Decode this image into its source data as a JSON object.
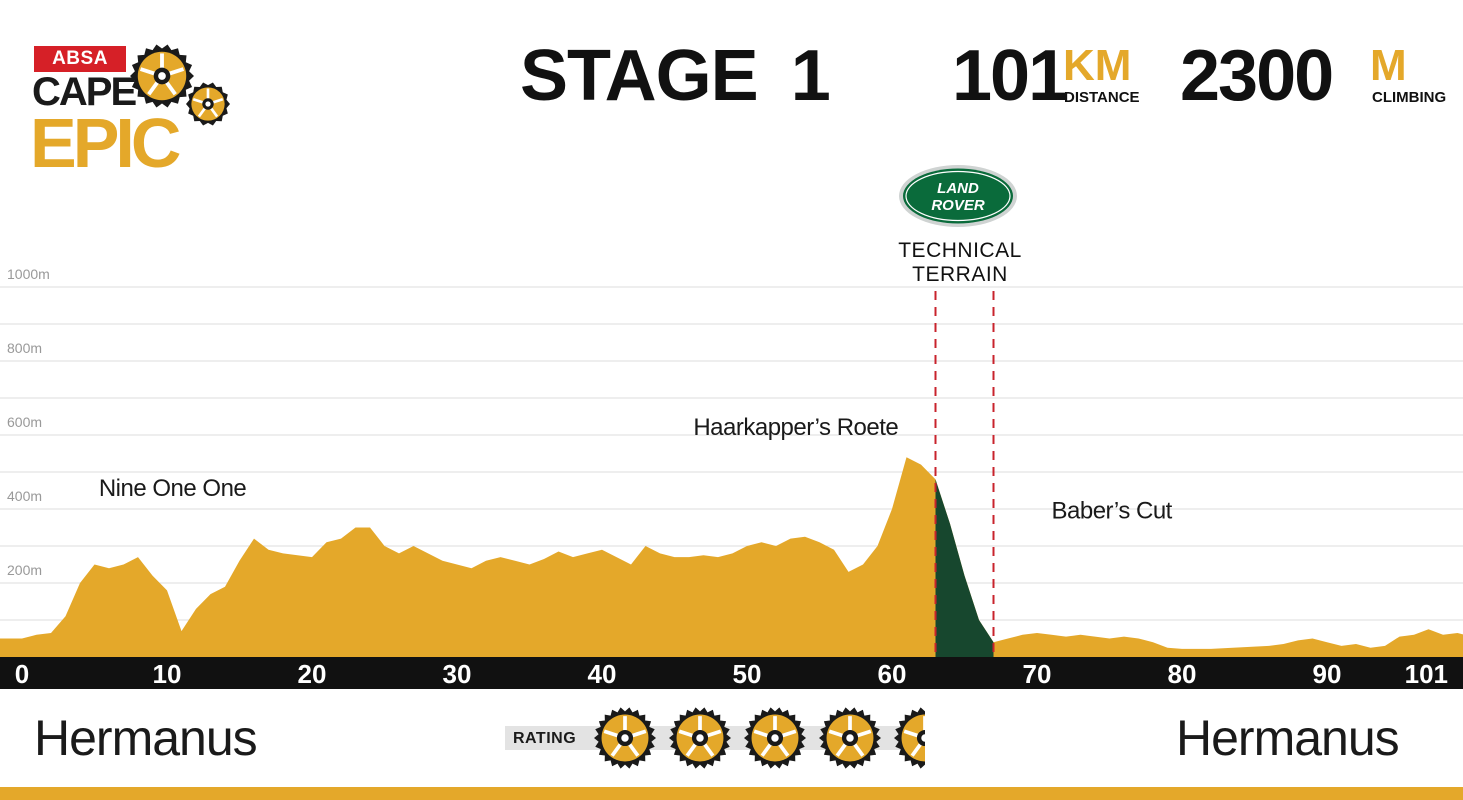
{
  "logo": {
    "absa": "ABSA",
    "cape": "CAPE",
    "epic": "EPIC"
  },
  "header": {
    "stage_word": "STAGE",
    "stage_number": "1",
    "distance_value": "101",
    "distance_unit": "KM",
    "distance_caption": "DISTANCE",
    "climbing_value": "2300",
    "climbing_unit": "M",
    "climbing_caption": "CLIMBING"
  },
  "sponsor": {
    "line1": "LAND",
    "line2": "ROVER",
    "technical_line1": "TECHNICAL",
    "technical_line2": "TERRAIN"
  },
  "footer": {
    "start_town": "Hermanus",
    "finish_town": "Hermanus",
    "rating_label": "RATING"
  },
  "rating": {
    "value": 4.5,
    "max": 5
  },
  "colors": {
    "profile_fill": "#e4a82a",
    "technical_fill": "#17472e",
    "technical_line": "#c8232c",
    "axis_band": "#111111",
    "land_rover_green": "#0a6b3b",
    "grid": "#dddddd"
  },
  "chart_data": {
    "type": "area",
    "title": "",
    "xlabel": "",
    "ylabel": "",
    "x_ticks": [
      "0",
      "10",
      "20",
      "30",
      "40",
      "50",
      "60",
      "70",
      "80",
      "90",
      "101"
    ],
    "y_ticks": [
      "200m",
      "400m",
      "600m",
      "800m",
      "1000m"
    ],
    "xlim": [
      0,
      101
    ],
    "ylim": [
      0,
      1000
    ],
    "grid": true,
    "technical_terrain": [
      63,
      67
    ],
    "annotations": [
      {
        "text": "Nine One One",
        "x": 5.3,
        "y": 435
      },
      {
        "text": "Haarkapper’s Roete",
        "x": 46.3,
        "y": 600
      },
      {
        "text": "Baber’s Cut",
        "x": 71.0,
        "y": 375
      }
    ],
    "series": [
      {
        "x": [
          0,
          1,
          2,
          3,
          4,
          5,
          6,
          7,
          8,
          9,
          10,
          11,
          12,
          13,
          14,
          15,
          16,
          17,
          18,
          19,
          20,
          21,
          22,
          23,
          24,
          25,
          26,
          27,
          28,
          29,
          30,
          31,
          32,
          33,
          34,
          35,
          36,
          37,
          38,
          39,
          40,
          41,
          42,
          43,
          44,
          45,
          46,
          47,
          48,
          49,
          50,
          51,
          52,
          53,
          54,
          55,
          56,
          57,
          58,
          59,
          60,
          61,
          62,
          63,
          64,
          65,
          66,
          67,
          68,
          69,
          70,
          71,
          72,
          73,
          74,
          75,
          76,
          77,
          78,
          79,
          80,
          81,
          82,
          83,
          84,
          85,
          86,
          87,
          88,
          89,
          90,
          91,
          92,
          93,
          94,
          95,
          96,
          97,
          98,
          99,
          100,
          101
        ],
        "values": [
          50,
          60,
          65,
          110,
          200,
          250,
          240,
          250,
          270,
          220,
          180,
          70,
          130,
          170,
          190,
          260,
          320,
          290,
          280,
          275,
          270,
          310,
          320,
          350,
          350,
          300,
          280,
          300,
          280,
          260,
          250,
          240,
          260,
          270,
          260,
          250,
          265,
          285,
          270,
          280,
          290,
          270,
          250,
          300,
          280,
          270,
          270,
          275,
          270,
          280,
          300,
          310,
          300,
          320,
          325,
          310,
          290,
          230,
          250,
          300,
          400,
          540,
          520,
          480,
          360,
          220,
          100,
          40,
          50,
          60,
          65,
          60,
          55,
          60,
          55,
          50,
          55,
          50,
          40,
          25,
          22,
          22,
          22,
          24,
          26,
          28,
          30,
          35,
          45,
          50,
          40,
          30,
          35,
          25,
          30,
          55,
          60,
          75,
          60,
          65,
          55,
          50
        ]
      }
    ]
  }
}
